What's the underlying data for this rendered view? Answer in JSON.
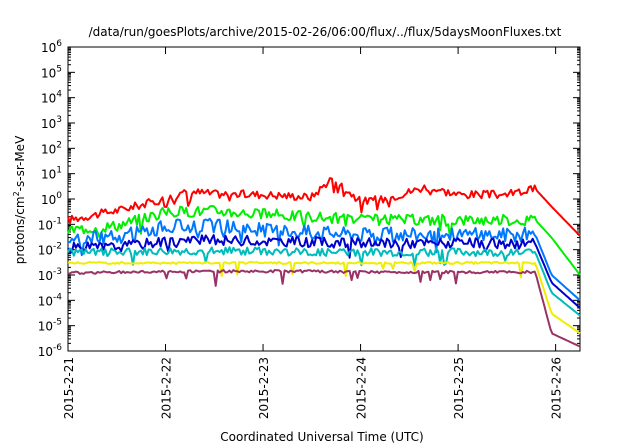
{
  "chart_data": {
    "type": "line",
    "title": "/data/run/goesPlots/archive/2015-02-26/06:00/flux/../flux/5daysMoonFluxes.txt",
    "xlabel": "Coordinated Universal Time (UTC)",
    "ylabel": {
      "base": "protons/cm",
      "sup": "2",
      "rest": "-s-sr-MeV"
    },
    "yscale": "log",
    "ylim": [
      1e-06,
      1000000.0
    ],
    "yticks": [
      {
        "mant": "10",
        "exp": "-6"
      },
      {
        "mant": "10",
        "exp": "-5"
      },
      {
        "mant": "10",
        "exp": "-4"
      },
      {
        "mant": "10",
        "exp": "-3"
      },
      {
        "mant": "10",
        "exp": "-2"
      },
      {
        "mant": "10",
        "exp": "-1"
      },
      {
        "mant": "10",
        "exp": "0"
      },
      {
        "mant": "10",
        "exp": "1"
      },
      {
        "mant": "10",
        "exp": "2"
      },
      {
        "mant": "10",
        "exp": "3"
      },
      {
        "mant": "10",
        "exp": "4"
      },
      {
        "mant": "10",
        "exp": "5"
      },
      {
        "mant": "10",
        "exp": "6"
      }
    ],
    "xlim": [
      "2015-2-21",
      "2015-2-26 06:00"
    ],
    "xticks": [
      "2015-2-21",
      "2015-2-22",
      "2015-2-23",
      "2015-2-24",
      "2015-2-25",
      "2015-2-26"
    ],
    "grid": false,
    "legend": "none",
    "series": [
      {
        "color": "#ff0000",
        "x": [
          "2015-2-21 00:00",
          "2015-2-21 12:00",
          "2015-2-22 00:00",
          "2015-2-22 06:00",
          "2015-2-22 12:00",
          "2015-2-23 00:00",
          "2015-2-23 12:00",
          "2015-2-23 17:00",
          "2015-2-24 00:00",
          "2015-2-24 06:00",
          "2015-2-24 16:00",
          "2015-2-25 00:00",
          "2015-2-25 12:00",
          "2015-2-25 19:00",
          "2015-2-25 23:00",
          "2015-2-26 06:00"
        ],
        "y": [
          0.15,
          0.35,
          1.0,
          2.0,
          1.6,
          1.5,
          1.2,
          7.0,
          0.8,
          1.0,
          3.0,
          1.5,
          1.5,
          2.5,
          0.5,
          0.035
        ]
      },
      {
        "color": "#00ee00",
        "x": [
          "2015-2-21 00:00",
          "2015-2-21 12:00",
          "2015-2-22 00:00",
          "2015-2-22 12:00",
          "2015-2-23 00:00",
          "2015-2-23 12:00",
          "2015-2-24 00:00",
          "2015-2-24 12:00",
          "2015-2-25 00:00",
          "2015-2-25 12:00",
          "2015-2-25 19:00",
          "2015-2-25 23:00",
          "2015-2-26 06:00"
        ],
        "y": [
          0.06,
          0.09,
          0.3,
          0.35,
          0.25,
          0.2,
          0.15,
          0.15,
          0.15,
          0.15,
          0.15,
          0.03,
          0.001
        ]
      },
      {
        "color": "#0077ff",
        "x": [
          "2015-2-21 00:00",
          "2015-2-21 12:00",
          "2015-2-22 00:00",
          "2015-2-22 12:00",
          "2015-2-23 00:00",
          "2015-2-23 12:00",
          "2015-2-24 00:00",
          "2015-2-24 12:00",
          "2015-2-25 00:00",
          "2015-2-25 12:00",
          "2015-2-25 19:00",
          "2015-2-25 23:00",
          "2015-2-26 06:00"
        ],
        "y": [
          0.03,
          0.03,
          0.08,
          0.09,
          0.06,
          0.05,
          0.04,
          0.04,
          0.04,
          0.04,
          0.04,
          0.001,
          0.0001
        ]
      },
      {
        "color": "#0000cc",
        "x": [
          "2015-2-21 00:00",
          "2015-2-21 12:00",
          "2015-2-22 00:00",
          "2015-2-22 12:00",
          "2015-2-23 00:00",
          "2015-2-23 12:00",
          "2015-2-24 00:00",
          "2015-2-24 12:00",
          "2015-2-25 00:00",
          "2015-2-25 12:00",
          "2015-2-25 19:00",
          "2015-2-25 23:00",
          "2015-2-26 06:00"
        ],
        "y": [
          0.012,
          0.013,
          0.022,
          0.024,
          0.022,
          0.02,
          0.018,
          0.018,
          0.018,
          0.017,
          0.017,
          0.0005,
          5e-05
        ]
      },
      {
        "color": "#00bbbb",
        "x": [
          "2015-2-21 00:00",
          "2015-2-21 12:00",
          "2015-2-22 00:00",
          "2015-2-22 12:00",
          "2015-2-23 00:00",
          "2015-2-23 12:00",
          "2015-2-24 00:00",
          "2015-2-24 12:00",
          "2015-2-25 00:00",
          "2015-2-25 12:00",
          "2015-2-25 19:00",
          "2015-2-25 23:00",
          "2015-2-26 06:00"
        ],
        "y": [
          0.008,
          0.008,
          0.009,
          0.009,
          0.009,
          0.008,
          0.008,
          0.008,
          0.008,
          0.008,
          0.008,
          0.0002,
          2.5e-05
        ]
      },
      {
        "color": "#eeee00",
        "x": [
          "2015-2-21 00:00",
          "2015-2-21 12:00",
          "2015-2-22 00:00",
          "2015-2-22 12:00",
          "2015-2-23 00:00",
          "2015-2-23 12:00",
          "2015-2-24 00:00",
          "2015-2-24 12:00",
          "2015-2-25 00:00",
          "2015-2-25 12:00",
          "2015-2-25 19:00",
          "2015-2-25 23:00",
          "2015-2-26 06:00"
        ],
        "y": [
          0.003,
          0.003,
          0.003,
          0.003,
          0.003,
          0.003,
          0.003,
          0.003,
          0.003,
          0.003,
          0.003,
          3e-05,
          5e-06
        ]
      },
      {
        "color": "#993366",
        "x": [
          "2015-2-21 00:00",
          "2015-2-21 12:00",
          "2015-2-22 00:00",
          "2015-2-22 12:00",
          "2015-2-23 00:00",
          "2015-2-23 12:00",
          "2015-2-24 00:00",
          "2015-2-24 12:00",
          "2015-2-25 00:00",
          "2015-2-25 12:00",
          "2015-2-25 19:00",
          "2015-2-25 23:00",
          "2015-2-26 06:00"
        ],
        "y": [
          0.0012,
          0.0013,
          0.0014,
          0.0014,
          0.0014,
          0.0014,
          0.0013,
          0.0013,
          0.0013,
          0.0013,
          0.0013,
          5e-06,
          1.5e-06
        ]
      }
    ]
  }
}
